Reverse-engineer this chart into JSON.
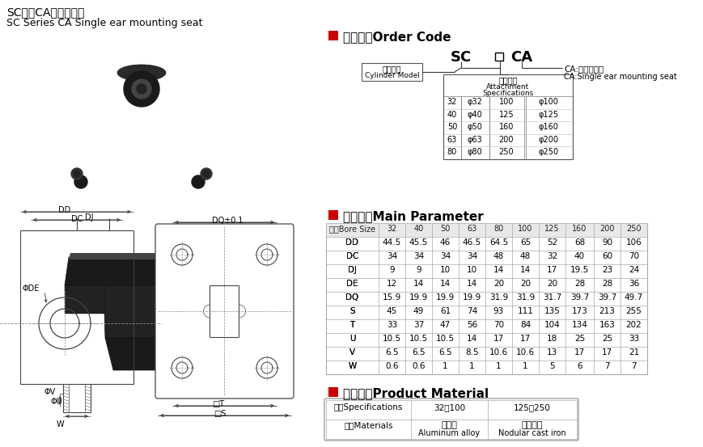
{
  "title_cn": "SC系列CA单耳固定座",
  "title_en": "SC Series CA Single ear mounting seat",
  "section1_title_cn": "订货型号",
  "section1_title_en": "Order Code",
  "section2_title_cn": "主要参数",
  "section2_title_en": "Main Parameter",
  "section3_title_cn": "产品材质",
  "section3_title_en": "Product Material",
  "order_code": {
    "label1_cn": "气缸型号",
    "label1_en": "Cylinder Model",
    "label2_cn": "附件规格",
    "label2_en": "Attachment",
    "label2_en2": "Specifications",
    "label3_cn": "CA:单耳固定座",
    "label3_en": "CA:Single ear mounting seat",
    "specs": [
      [
        "32",
        "φ32",
        "100",
        "φ100"
      ],
      [
        "40",
        "φ40",
        "125",
        "φ125"
      ],
      [
        "50",
        "φ50",
        "160",
        "φ160"
      ],
      [
        "63",
        "φ63",
        "200",
        "φ200"
      ],
      [
        "80",
        "φ80",
        "250",
        "φ250"
      ]
    ]
  },
  "main_param": {
    "headers": [
      "缸径Bore Size",
      "32",
      "40",
      "50",
      "63",
      "80",
      "100",
      "125",
      "160",
      "200",
      "250"
    ],
    "rows": [
      [
        "DD",
        "44.5",
        "45.5",
        "46",
        "46.5",
        "64.5",
        "65",
        "52",
        "68",
        "90",
        "106"
      ],
      [
        "DC",
        "34",
        "34",
        "34",
        "34",
        "48",
        "48",
        "32",
        "40",
        "60",
        "70"
      ],
      [
        "DJ",
        "9",
        "9",
        "10",
        "10",
        "14",
        "14",
        "17",
        "19.5",
        "23",
        "24"
      ],
      [
        "DE",
        "12",
        "14",
        "14",
        "14",
        "20",
        "20",
        "20",
        "28",
        "28",
        "36"
      ],
      [
        "DQ",
        "15.9",
        "19.9",
        "19.9",
        "19.9",
        "31.9",
        "31.9",
        "31.7",
        "39.7",
        "39.7",
        "49.7"
      ],
      [
        "S",
        "45",
        "49",
        "61",
        "74",
        "93",
        "111",
        "135",
        "173",
        "213",
        "255"
      ],
      [
        "T",
        "33",
        "37",
        "47",
        "56",
        "70",
        "84",
        "104",
        "134",
        "163",
        "202"
      ],
      [
        "U",
        "10.5",
        "10.5",
        "10.5",
        "14",
        "17",
        "17",
        "18",
        "25",
        "25",
        "33"
      ],
      [
        "V",
        "6.5",
        "6.5",
        "6.5",
        "8.5",
        "10.6",
        "10.6",
        "13",
        "17",
        "17",
        "21"
      ],
      [
        "W",
        "0.6",
        "0.6",
        "1",
        "1",
        "1",
        "1",
        "5",
        "6",
        "7",
        "7"
      ]
    ]
  },
  "material": {
    "headers": [
      "规格Specifications",
      "32－100",
      "125－250"
    ],
    "row_label": "材质Materials",
    "row_val1_cn": "铝合金",
    "row_val1_en": "Aluminum alloy",
    "row_val2_cn": "球墨铸铁",
    "row_val2_en": "Nodular cast iron"
  },
  "bg_color": "#ffffff",
  "red_color": "#cc0000",
  "table_line_color": "#aaaaaa",
  "text_color": "#000000"
}
